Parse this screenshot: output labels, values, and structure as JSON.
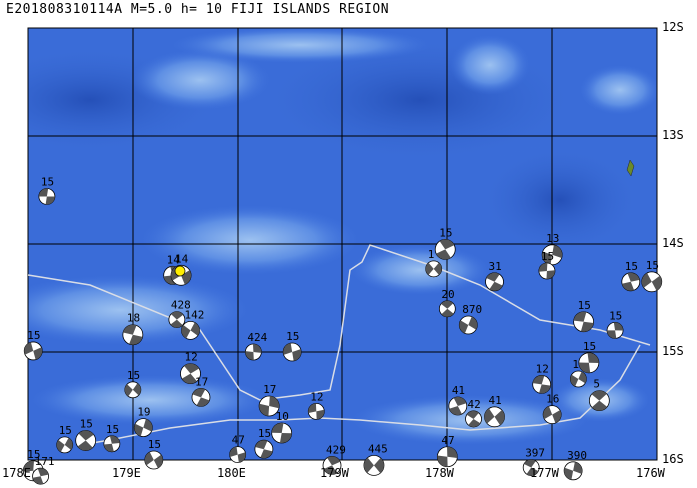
{
  "title": "E201808310114A M=5.0 h= 10 FIJI ISLANDS REGION",
  "lat_ticks": [
    "12S",
    "13S",
    "14S",
    "15S",
    "16S"
  ],
  "lon_ticks": [
    "178E",
    "179E",
    "180E",
    "179W",
    "178W",
    "177W",
    "176W"
  ],
  "epicenter": {
    "lon": 179.45,
    "lat": -14.25,
    "color": "#ffee00"
  },
  "colors": {
    "ocean_dark": "#2a5bc8",
    "ocean_mid": "#3f72dd",
    "ocean_light": "#6f9ce8",
    "grid": "#000000",
    "plate_boundary": "#d9dde6"
  },
  "events": [
    {
      "lat": -13.56,
      "lon": 178.18,
      "label": "15"
    },
    {
      "lat": -14.29,
      "lon": 179.38,
      "label": "14"
    },
    {
      "lat": -14.29,
      "lon": 179.46,
      "label": "14"
    },
    {
      "lat": -14.7,
      "lon": 179.42,
      "label": "428"
    },
    {
      "lat": -14.8,
      "lon": 179.55,
      "label": "142"
    },
    {
      "lat": -14.84,
      "lon": 179.0,
      "label": "18"
    },
    {
      "lat": -15.0,
      "lon": 180.15,
      "label": "424"
    },
    {
      "lat": -15.0,
      "lon": 180.52,
      "label": "15"
    },
    {
      "lat": -14.05,
      "lon": 181.98,
      "label": "15"
    },
    {
      "lat": -14.23,
      "lon": 181.87,
      "label": "1"
    },
    {
      "lat": -14.35,
      "lon": 182.45,
      "label": "31"
    },
    {
      "lat": -14.1,
      "lon": 183.0,
      "label": "13"
    },
    {
      "lat": -14.25,
      "lon": 182.95,
      "label": "15"
    },
    {
      "lat": -14.35,
      "lon": 183.75,
      "label": "15"
    },
    {
      "lat": -14.35,
      "lon": 183.95,
      "label": "15"
    },
    {
      "lat": -14.6,
      "lon": 182.0,
      "label": "20"
    },
    {
      "lat": -14.75,
      "lon": 182.2,
      "label": "870"
    },
    {
      "lat": -14.72,
      "lon": 183.3,
      "label": "15"
    },
    {
      "lat": -14.8,
      "lon": 183.6,
      "label": "15"
    },
    {
      "lat": -14.99,
      "lon": 178.05,
      "label": "15"
    },
    {
      "lat": -15.2,
      "lon": 179.55,
      "label": "12"
    },
    {
      "lat": -15.35,
      "lon": 179.0,
      "label": "15"
    },
    {
      "lat": -15.42,
      "lon": 179.65,
      "label": "17"
    },
    {
      "lat": -15.5,
      "lon": 180.3,
      "label": "17"
    },
    {
      "lat": -15.55,
      "lon": 180.75,
      "label": "12"
    },
    {
      "lat": -15.5,
      "lon": 182.1,
      "label": "41"
    },
    {
      "lat": -15.6,
      "lon": 182.45,
      "label": "41"
    },
    {
      "lat": -15.62,
      "lon": 182.25,
      "label": "42"
    },
    {
      "lat": -15.7,
      "lon": 179.1,
      "label": "19"
    },
    {
      "lat": -15.75,
      "lon": 180.42,
      "label": "10"
    },
    {
      "lat": -15.85,
      "lon": 178.8,
      "label": "15"
    },
    {
      "lat": -15.58,
      "lon": 183.0,
      "label": "16"
    },
    {
      "lat": -15.82,
      "lon": 178.55,
      "label": "15"
    },
    {
      "lat": -15.86,
      "lon": 178.35,
      "label": "15"
    },
    {
      "lat": -15.9,
      "lon": 180.25,
      "label": "15"
    },
    {
      "lat": -15.97,
      "lon": 182.0,
      "label": "47"
    },
    {
      "lat": -15.95,
      "lon": 180.0,
      "label": "47"
    },
    {
      "lat": -16.05,
      "lon": 180.9,
      "label": "429"
    },
    {
      "lat": -16.05,
      "lon": 181.3,
      "label": "445"
    },
    {
      "lat": -16.07,
      "lon": 182.8,
      "label": "397"
    },
    {
      "lat": -16.1,
      "lon": 183.2,
      "label": "390"
    },
    {
      "lat": -16.1,
      "lon": 178.05,
      "label": "15"
    },
    {
      "lat": -16.15,
      "lon": 178.12,
      "label": "171"
    },
    {
      "lat": -16.0,
      "lon": 179.2,
      "label": "15"
    },
    {
      "lat": -15.45,
      "lon": 183.45,
      "label": "5"
    },
    {
      "lat": -15.25,
      "lon": 183.25,
      "label": "10"
    },
    {
      "lat": -15.3,
      "lon": 182.9,
      "label": "12"
    },
    {
      "lat": -15.1,
      "lon": 183.35,
      "label": "15"
    }
  ]
}
